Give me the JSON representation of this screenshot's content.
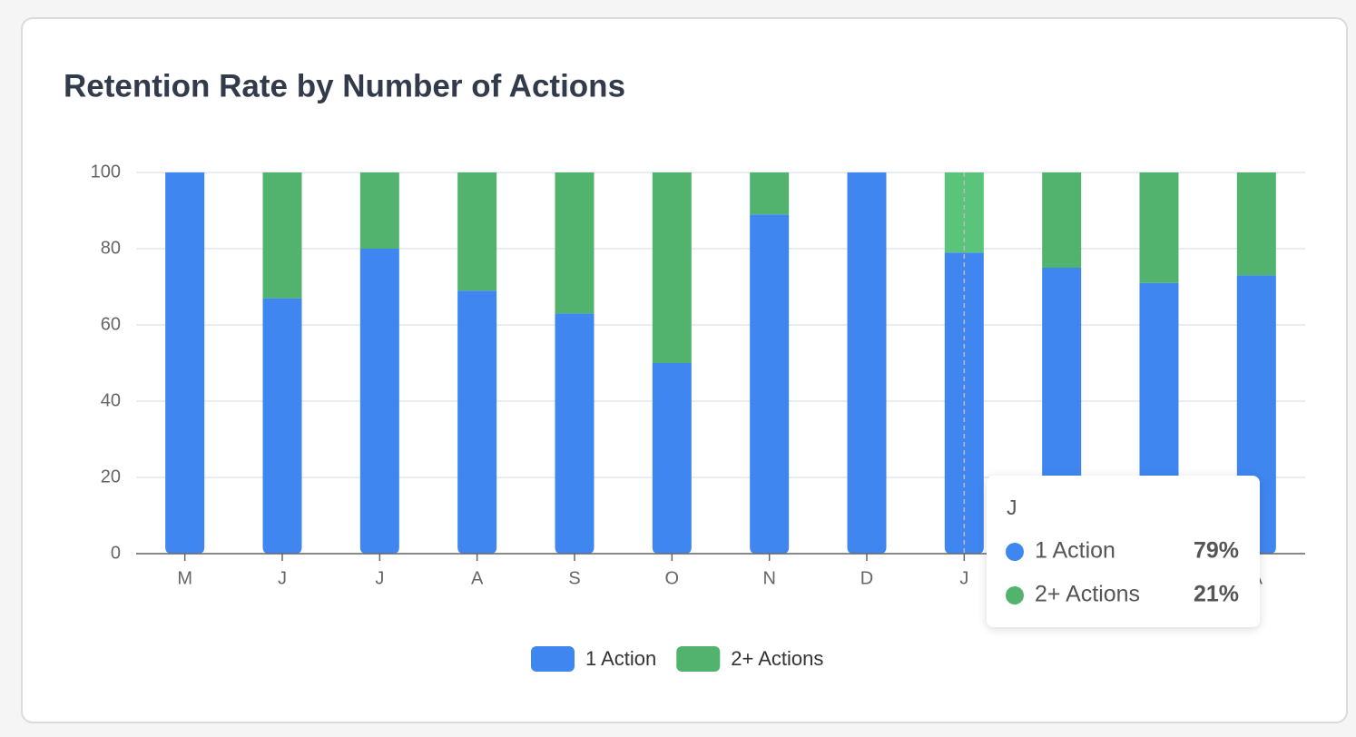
{
  "chart_data": {
    "type": "stacked_bar",
    "title": "Retention Rate by Number of Actions",
    "categories": [
      "M",
      "J",
      "J",
      "A",
      "S",
      "O",
      "N",
      "D",
      "J",
      null,
      null,
      "A"
    ],
    "series": [
      {
        "name": "1 Action",
        "color": "#3f86f0",
        "values": [
          100,
          67,
          80,
          69,
          63,
          50,
          89,
          100,
          79,
          75,
          71,
          73
        ]
      },
      {
        "name": "2+ Actions",
        "color": "#52b36f",
        "values": [
          0,
          33,
          20,
          31,
          37,
          50,
          11,
          0,
          21,
          25,
          29,
          27
        ]
      }
    ],
    "ylim": [
      0,
      100
    ],
    "yticks": [
      0,
      20,
      40,
      60,
      80,
      100
    ],
    "grid": true,
    "legend": "bottom",
    "hover_index": 8,
    "tooltip": {
      "title": "J",
      "rows": [
        {
          "name": "1 Action",
          "value": 79,
          "label": "79%"
        },
        {
          "name": "2+ Actions",
          "value": 21,
          "label": "21%"
        }
      ]
    }
  }
}
